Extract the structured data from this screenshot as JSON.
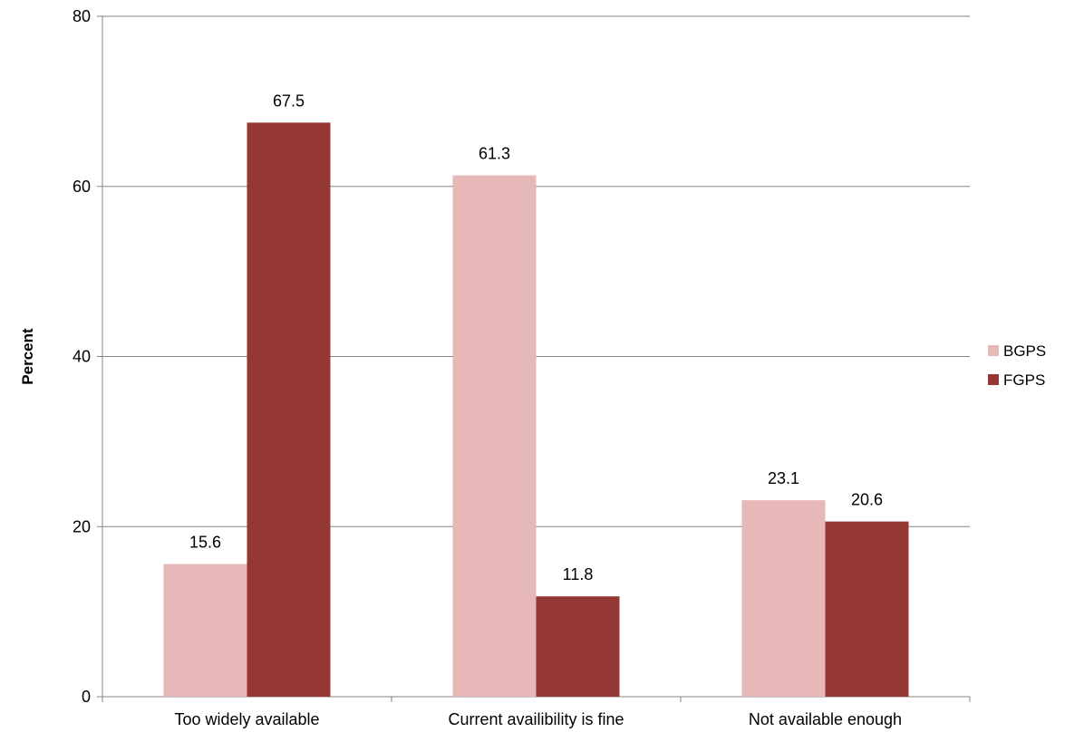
{
  "chart_data": {
    "type": "bar",
    "title": "",
    "xlabel": "",
    "ylabel": "Percent",
    "ylim": [
      0,
      80
    ],
    "yticks": [
      0,
      20,
      40,
      60,
      80
    ],
    "grid": true,
    "legend_position": "right",
    "categories": [
      "Too widely available",
      "Current availibility is fine",
      "Not available enough"
    ],
    "series": [
      {
        "name": "BGPS",
        "color": "#e6b8b7",
        "values": [
          15.6,
          61.3,
          23.1
        ]
      },
      {
        "name": "FGPS",
        "color": "#953735",
        "values": [
          67.5,
          11.8,
          20.6
        ]
      }
    ]
  }
}
